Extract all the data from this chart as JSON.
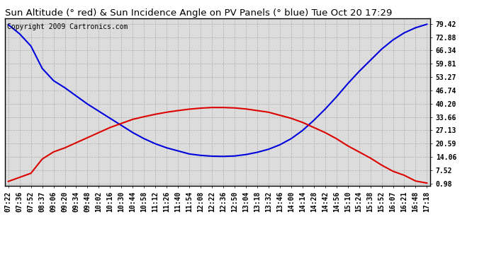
{
  "title": "Sun Altitude (° red) & Sun Incidence Angle on PV Panels (° blue) Tue Oct 20 17:29",
  "copyright": "Copyright 2009 Cartronics.com",
  "yticks": [
    0.98,
    7.52,
    14.06,
    20.59,
    27.13,
    33.66,
    40.2,
    46.74,
    53.27,
    59.81,
    66.34,
    72.88,
    79.42
  ],
  "ylim_min": 0.0,
  "ylim_max": 82.0,
  "x_labels": [
    "07:22",
    "07:36",
    "07:52",
    "08:37",
    "09:06",
    "09:20",
    "09:34",
    "09:48",
    "10:02",
    "10:16",
    "10:30",
    "10:44",
    "10:58",
    "11:12",
    "11:26",
    "11:40",
    "11:54",
    "12:08",
    "12:22",
    "12:36",
    "12:50",
    "13:04",
    "13:18",
    "13:32",
    "13:46",
    "14:00",
    "14:14",
    "14:28",
    "14:42",
    "14:56",
    "15:10",
    "15:24",
    "15:38",
    "15:52",
    "16:07",
    "16:21",
    "16:48",
    "17:18"
  ],
  "blue_y": [
    79.0,
    74.5,
    68.5,
    57.5,
    51.5,
    48.0,
    44.0,
    40.0,
    36.5,
    33.0,
    29.5,
    26.0,
    23.0,
    20.5,
    18.5,
    17.0,
    15.5,
    14.8,
    14.4,
    14.3,
    14.5,
    15.2,
    16.3,
    17.8,
    20.0,
    23.0,
    27.0,
    32.0,
    37.5,
    43.5,
    50.0,
    56.0,
    61.5,
    67.0,
    71.5,
    75.0,
    77.5,
    79.2
  ],
  "red_y": [
    2.0,
    4.0,
    6.0,
    13.0,
    16.5,
    18.5,
    21.0,
    23.5,
    26.0,
    28.5,
    30.5,
    32.5,
    33.8,
    35.0,
    36.0,
    36.8,
    37.5,
    38.0,
    38.3,
    38.3,
    38.1,
    37.6,
    36.8,
    36.0,
    34.5,
    33.0,
    31.0,
    28.5,
    26.0,
    23.0,
    19.5,
    16.5,
    13.5,
    10.0,
    7.0,
    5.0,
    2.2,
    1.2
  ],
  "blue_color": "#0000dd",
  "red_color": "#dd0000",
  "bg_color": "#ffffff",
  "plot_bg": "#dcdcdc",
  "grid_color": "#aaaaaa",
  "title_fontsize": 9.5,
  "tick_fontsize": 7,
  "copyright_fontsize": 7,
  "line_width": 1.5
}
